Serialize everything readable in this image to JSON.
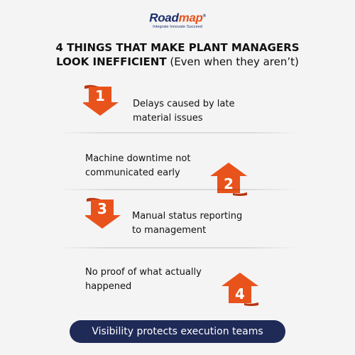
{
  "logo": {
    "word_part_1": "Road",
    "word_part_2": "map",
    "trademark": "®",
    "tagline": "Integrate Innovate Succeed"
  },
  "title": {
    "line_1": "4 THINGS THAT MAKE PLANT MANAGERS",
    "line_2_bold": "LOOK INEFFICIENT",
    "line_2_paren": " (Even when they aren’t)"
  },
  "steps": [
    {
      "number": "1",
      "line_1": "Delays caused by late",
      "line_2": "material issues",
      "arrow": "down"
    },
    {
      "number": "2",
      "line_1": "Machine downtime not",
      "line_2": "communicated early",
      "arrow": "up"
    },
    {
      "number": "3",
      "line_1": "Manual status reporting",
      "line_2": "to management",
      "arrow": "down"
    },
    {
      "number": "4",
      "line_1": "No proof of what actually",
      "line_2": "happened",
      "arrow": "up"
    }
  ],
  "footer": {
    "text": "Visibility protects execution teams"
  },
  "colors": {
    "accent": "#e8531c",
    "accent_dark": "#b83410",
    "navy": "#1f2a57",
    "background": "#f4f4f5"
  }
}
